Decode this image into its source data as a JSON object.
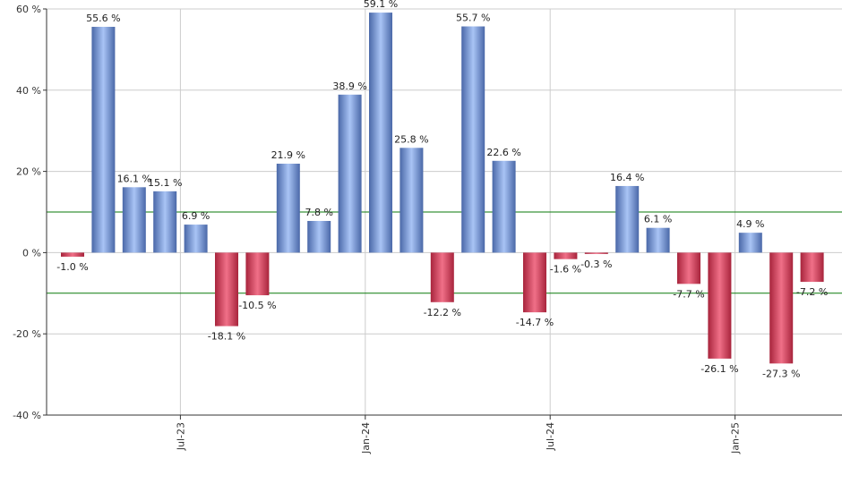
{
  "chart_data": {
    "type": "bar",
    "title": "",
    "xlabel": "",
    "ylabel": "",
    "ylim": [
      -40,
      60
    ],
    "y_ticks": [
      -40,
      -20,
      0,
      20,
      40,
      60
    ],
    "y_tick_labels": [
      "-40 %",
      "-20 %",
      "0 %",
      "20 %",
      "40 %",
      "60 %"
    ],
    "x_tick_labels": [
      {
        "label": "Jul-23",
        "at_bar": 3.5
      },
      {
        "label": "Jan-24",
        "at_bar": 9.5
      },
      {
        "label": "Jul-24",
        "at_bar": 15.5
      },
      {
        "label": "Jan-25",
        "at_bar": 21.5
      }
    ],
    "values": [
      -1.0,
      55.6,
      16.1,
      15.1,
      6.9,
      -18.1,
      -10.5,
      21.9,
      7.8,
      38.9,
      59.1,
      25.8,
      -12.2,
      55.7,
      22.6,
      -14.7,
      -1.6,
      -0.3,
      16.4,
      6.1,
      -7.7,
      -26.1,
      4.9,
      -27.3,
      -7.2
    ],
    "labels": [
      "-1.0 %",
      "55.6 %",
      "16.1 %",
      "15.1 %",
      "6.9 %",
      "-18.1 %",
      "-10.5 %",
      "21.9 %",
      "7.8 %",
      "38.9 %",
      "59.1 %",
      "25.8 %",
      "-12.2 %",
      "55.7 %",
      "22.6 %",
      "-14.7 %",
      "-1.6 %",
      "-0.3 %",
      "16.4 %",
      "6.1 %",
      "-7.7 %",
      "-26.1 %",
      "4.9 %",
      "-27.3 %",
      "-7.2 %"
    ],
    "reference_lines": [
      10,
      -10
    ],
    "grid": true,
    "legend": "none",
    "colors": {
      "positive_dark": "#4a68a8",
      "positive_light": "#a9c4f5",
      "negative_dark": "#a8243c",
      "negative_light": "#f07088",
      "reference_line": "#0a7a0a",
      "grid": "#cccccc",
      "axis": "#333333"
    }
  }
}
